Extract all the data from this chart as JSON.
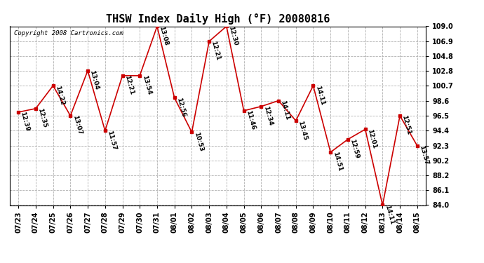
{
  "title": "THSW Index Daily High (°F) 20080816",
  "copyright": "Copyright 2008 Cartronics.com",
  "dates": [
    "07/23",
    "07/24",
    "07/25",
    "07/26",
    "07/27",
    "07/28",
    "07/29",
    "07/30",
    "07/31",
    "08/01",
    "08/02",
    "08/03",
    "08/04",
    "08/05",
    "08/06",
    "08/07",
    "08/08",
    "08/09",
    "08/10",
    "08/11",
    "08/12",
    "08/13",
    "08/14",
    "08/15"
  ],
  "values": [
    97.0,
    97.5,
    100.7,
    96.5,
    102.8,
    94.4,
    102.1,
    102.1,
    109.0,
    99.0,
    94.2,
    106.9,
    109.0,
    97.2,
    97.8,
    98.6,
    95.8,
    100.7,
    91.4,
    93.2,
    94.6,
    84.0,
    96.5,
    92.3
  ],
  "labels": [
    "12:39",
    "12:35",
    "14:22",
    "13:07",
    "13:04",
    "11:57",
    "12:21",
    "13:54",
    "13:08",
    "12:56",
    "10:53",
    "12:21",
    "12:30",
    "11:46",
    "12:34",
    "14:11",
    "13:45",
    "14:11",
    "14:51",
    "12:59",
    "12:01",
    "14:11",
    "12:51",
    "13:57"
  ],
  "ylim": [
    84.0,
    109.0
  ],
  "yticks": [
    84.0,
    86.1,
    88.2,
    90.2,
    92.3,
    94.4,
    96.5,
    98.6,
    100.7,
    102.8,
    104.8,
    106.9,
    109.0
  ],
  "line_color": "#cc0000",
  "marker_color": "#cc0000",
  "bg_color": "#ffffff",
  "grid_color": "#b0b0b0",
  "title_fontsize": 11,
  "label_fontsize": 6.5,
  "copyright_fontsize": 6.5,
  "tick_fontsize": 7.0
}
